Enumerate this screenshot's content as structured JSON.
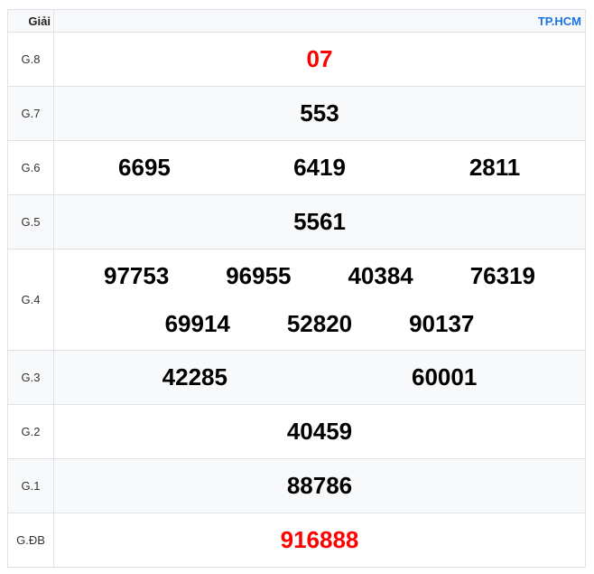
{
  "header": {
    "prize_label": "Giải",
    "province": "TP.HCM"
  },
  "accent_color": "#1a73e8",
  "highlight_color": "#ff0000",
  "prizes": [
    {
      "label": "G.8",
      "numbers": [
        "07"
      ]
    },
    {
      "label": "G.7",
      "numbers": [
        "553"
      ]
    },
    {
      "label": "G.6",
      "numbers": [
        "6695",
        "6419",
        "2811"
      ]
    },
    {
      "label": "G.5",
      "numbers": [
        "5561"
      ]
    },
    {
      "label": "G.4",
      "numbers": [
        "97753",
        "96955",
        "40384",
        "76319",
        "69914",
        "52820",
        "90137"
      ]
    },
    {
      "label": "G.3",
      "numbers": [
        "42285",
        "60001"
      ]
    },
    {
      "label": "G.2",
      "numbers": [
        "40459"
      ]
    },
    {
      "label": "G.1",
      "numbers": [
        "88786"
      ]
    },
    {
      "label": "G.ĐB",
      "numbers": [
        "916888"
      ]
    }
  ]
}
